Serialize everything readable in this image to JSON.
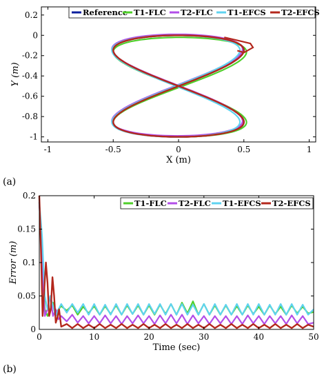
{
  "panel_labels": {
    "a": "(a)",
    "b": "(b)"
  },
  "colors": {
    "Reference": "#0b1f9e",
    "T1-FLC": "#4fcf2a",
    "T2-FLC": "#b24ee8",
    "T1-EFCS": "#5fd3f0",
    "T2-EFCS": "#b3271c"
  },
  "chart_data": [
    {
      "type": "line",
      "xlabel": "X (m)",
      "ylabel": "Y (m)",
      "xlim": [
        -1.05,
        1.05
      ],
      "ylim": [
        -1.05,
        0.28
      ],
      "xticks": [
        -1,
        -0.5,
        0,
        0.5,
        1
      ],
      "xtick_labels": [
        "-1",
        "-0.5",
        "0",
        "0.5",
        "1"
      ],
      "yticks": [
        0.2,
        0,
        -0.2,
        -0.4,
        -0.6,
        -0.8,
        -1
      ],
      "ytick_labels": [
        "0.2",
        "0",
        "-0.2",
        "-0.4",
        "-0.6",
        "-0.8",
        "-1"
      ],
      "legend_position": "top",
      "series": [
        {
          "name": "Reference",
          "curve": "figure-eight",
          "x_amplitude": 0.5,
          "y_center": -0.5,
          "y_amplitude": 0.5,
          "x_shift": 0,
          "y_shift": 0
        },
        {
          "name": "T1-FLC",
          "curve": "figure-eight",
          "x_amplitude": 0.51,
          "y_center": -0.5,
          "y_amplitude": 0.49,
          "x_shift": 0.01,
          "y_shift": -0.01
        },
        {
          "name": "T2-FLC",
          "curve": "figure-eight",
          "x_amplitude": 0.5,
          "y_center": -0.5,
          "y_amplitude": 0.5,
          "x_shift": -0.01,
          "y_shift": 0.01
        },
        {
          "name": "T1-EFCS",
          "curve": "figure-eight",
          "x_amplitude": 0.49,
          "y_center": -0.5,
          "y_amplitude": 0.5,
          "x_shift": -0.02,
          "y_shift": 0.0
        },
        {
          "name": "T2-EFCS",
          "curve": "figure-eight",
          "x_amplitude": 0.5,
          "y_center": -0.5,
          "y_amplitude": 0.5,
          "x_shift": 0.0,
          "y_shift": 0.0,
          "overshoot": {
            "x": [
              0.35,
              0.45,
              0.55,
              0.57,
              0.5,
              0.45
            ],
            "y": [
              -0.02,
              -0.05,
              -0.08,
              -0.12,
              -0.17,
              -0.15
            ]
          }
        }
      ]
    },
    {
      "type": "line",
      "xlabel": "Time (sec)",
      "ylabel": "Error (m)",
      "xlim": [
        0,
        50
      ],
      "ylim": [
        0,
        0.2
      ],
      "xticks": [
        0,
        10,
        20,
        30,
        40,
        50
      ],
      "xtick_labels": [
        "0",
        "10",
        "20",
        "30",
        "40",
        "50"
      ],
      "yticks": [
        0,
        0.05,
        0.1,
        0.15,
        0.2
      ],
      "ytick_labels": [
        "0",
        "0.05",
        "0.1",
        "0.15",
        "0.2"
      ],
      "legend_position": "top-right",
      "series": [
        {
          "name": "T1-FLC",
          "x": [
            0,
            0.5,
            1,
            1.5,
            2,
            2.5,
            3,
            3.5,
            4,
            5,
            6,
            7,
            8,
            9,
            10,
            11,
            12,
            13,
            14,
            15,
            16,
            17,
            18,
            19,
            20,
            21,
            22,
            23,
            24,
            25,
            26,
            27,
            28,
            29,
            30,
            31,
            32,
            33,
            34,
            35,
            36,
            37,
            38,
            39,
            40,
            41,
            42,
            43,
            44,
            45,
            46,
            47,
            48,
            49,
            50
          ],
          "y": [
            0.19,
            0.12,
            0.03,
            0.02,
            0.03,
            0.04,
            0.025,
            0.03,
            0.035,
            0.028,
            0.036,
            0.022,
            0.034,
            0.024,
            0.035,
            0.022,
            0.035,
            0.023,
            0.036,
            0.022,
            0.036,
            0.023,
            0.036,
            0.022,
            0.036,
            0.022,
            0.037,
            0.023,
            0.038,
            0.022,
            0.04,
            0.024,
            0.042,
            0.022,
            0.038,
            0.022,
            0.036,
            0.022,
            0.036,
            0.022,
            0.035,
            0.022,
            0.036,
            0.023,
            0.034,
            0.022,
            0.036,
            0.023,
            0.034,
            0.022,
            0.036,
            0.024,
            0.034,
            0.024,
            0.026
          ]
        },
        {
          "name": "T2-FLC",
          "x": [
            0,
            0.5,
            1,
            1.5,
            2,
            2.5,
            3,
            3.5,
            4,
            5,
            6,
            7,
            8,
            9,
            10,
            11,
            12,
            13,
            14,
            15,
            16,
            17,
            18,
            19,
            20,
            21,
            22,
            23,
            24,
            25,
            26,
            27,
            28,
            29,
            30,
            31,
            32,
            33,
            34,
            35,
            36,
            37,
            38,
            39,
            40,
            41,
            42,
            43,
            44,
            45,
            46,
            47,
            48,
            49,
            50
          ],
          "y": [
            0.19,
            0.1,
            0.02,
            0.03,
            0.05,
            0.02,
            0.03,
            0.015,
            0.02,
            0.012,
            0.022,
            0.01,
            0.02,
            0.009,
            0.02,
            0.009,
            0.021,
            0.009,
            0.02,
            0.008,
            0.02,
            0.009,
            0.021,
            0.009,
            0.02,
            0.008,
            0.021,
            0.009,
            0.022,
            0.009,
            0.022,
            0.008,
            0.021,
            0.009,
            0.02,
            0.008,
            0.02,
            0.009,
            0.02,
            0.008,
            0.02,
            0.008,
            0.021,
            0.009,
            0.02,
            0.008,
            0.02,
            0.009,
            0.02,
            0.008,
            0.021,
            0.009,
            0.02,
            0.008,
            0.01
          ]
        },
        {
          "name": "T1-EFCS",
          "x": [
            0,
            0.5,
            1,
            1.5,
            2,
            2.5,
            3,
            3.5,
            4,
            5,
            6,
            7,
            8,
            9,
            10,
            11,
            12,
            13,
            14,
            15,
            16,
            17,
            18,
            19,
            20,
            21,
            22,
            23,
            24,
            25,
            26,
            27,
            28,
            29,
            30,
            31,
            32,
            33,
            34,
            35,
            36,
            37,
            38,
            39,
            40,
            41,
            42,
            43,
            44,
            45,
            46,
            47,
            48,
            49,
            50
          ],
          "y": [
            0.19,
            0.14,
            0.05,
            0.03,
            0.05,
            0.035,
            0.02,
            0.03,
            0.038,
            0.025,
            0.038,
            0.025,
            0.038,
            0.022,
            0.038,
            0.022,
            0.037,
            0.022,
            0.038,
            0.022,
            0.038,
            0.023,
            0.038,
            0.022,
            0.038,
            0.023,
            0.038,
            0.022,
            0.038,
            0.022,
            0.038,
            0.022,
            0.037,
            0.022,
            0.038,
            0.022,
            0.038,
            0.022,
            0.037,
            0.022,
            0.038,
            0.022,
            0.038,
            0.022,
            0.038,
            0.022,
            0.037,
            0.022,
            0.038,
            0.022,
            0.038,
            0.022,
            0.037,
            0.022,
            0.03
          ]
        },
        {
          "name": "T2-EFCS",
          "x": [
            0,
            0.3,
            0.6,
            0.9,
            1.2,
            1.5,
            1.8,
            2.1,
            2.4,
            2.7,
            3,
            3.3,
            3.6,
            4,
            5,
            6,
            7,
            8,
            9,
            10,
            11,
            12,
            13,
            14,
            15,
            16,
            17,
            18,
            19,
            20,
            21,
            22,
            23,
            24,
            25,
            26,
            27,
            28,
            29,
            30,
            31,
            32,
            33,
            34,
            35,
            36,
            37,
            38,
            39,
            40,
            41,
            42,
            43,
            44,
            45,
            46,
            47,
            48,
            49,
            50
          ],
          "y": [
            0.2,
            0.12,
            0.02,
            0.06,
            0.1,
            0.07,
            0.02,
            0.03,
            0.078,
            0.05,
            0.01,
            0.018,
            0.03,
            0.004,
            0.008,
            0.002,
            0.008,
            0.002,
            0.007,
            0.002,
            0.008,
            0.002,
            0.007,
            0.002,
            0.008,
            0.002,
            0.007,
            0.002,
            0.008,
            0.002,
            0.007,
            0.002,
            0.008,
            0.002,
            0.007,
            0.002,
            0.008,
            0.002,
            0.007,
            0.002,
            0.008,
            0.002,
            0.007,
            0.002,
            0.008,
            0.002,
            0.007,
            0.002,
            0.008,
            0.002,
            0.007,
            0.002,
            0.008,
            0.002,
            0.007,
            0.002,
            0.008,
            0.002,
            0.007,
            0.004
          ]
        }
      ]
    }
  ]
}
